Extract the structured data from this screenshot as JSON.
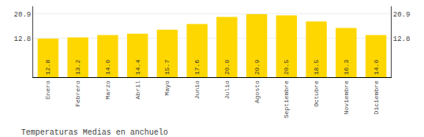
{
  "chart_data": {
    "type": "bar",
    "title": "Temperaturas Medias en anchuelo",
    "categories": [
      "Enero",
      "Febrero",
      "Marzo",
      "Abril",
      "Mayo",
      "Junio",
      "Julio",
      "Agosto",
      "Septiembre",
      "Octubre",
      "Noviembre",
      "Diciembre"
    ],
    "values": [
      12.8,
      13.2,
      14.0,
      14.4,
      15.7,
      17.6,
      20.0,
      20.9,
      20.5,
      18.5,
      16.3,
      14.0
    ],
    "value_labels": [
      "12.8",
      "13.2",
      "14.0",
      "14.4",
      "15.7",
      "17.6",
      "20.0",
      "20.9",
      "20.5",
      "18.5",
      "16.3",
      "14.0"
    ],
    "color": "#FFD700",
    "ylim": [
      0.0,
      23.5
    ],
    "yticks": [
      12.8,
      20.9
    ],
    "y2lim": [
      0.0,
      23.5
    ],
    "y2ticks": [
      12.8,
      20.9
    ],
    "grid": true,
    "data_labels": true
  }
}
